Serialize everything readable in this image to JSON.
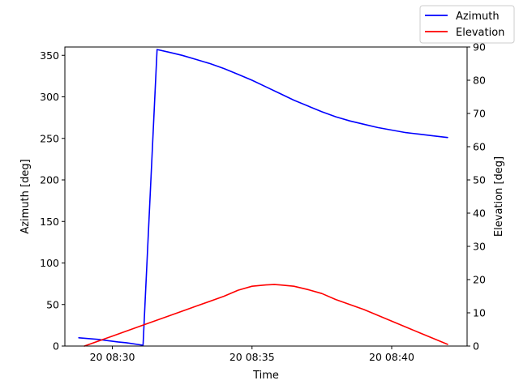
{
  "chart_data": {
    "type": "line",
    "xlabel": "Time",
    "ylabel_left": "Azimuth [deg]",
    "ylabel_right": "Elevation [deg]",
    "x_ticks": [
      "20 08:30",
      "20 08:35",
      "20 08:40"
    ],
    "x_tick_minutes": [
      30,
      35,
      40
    ],
    "xlim_minutes": [
      28.3,
      42.7
    ],
    "ylim_left": [
      0,
      360
    ],
    "ylim_right": [
      0,
      90
    ],
    "yticks_left": [
      "0",
      "50",
      "100",
      "150",
      "200",
      "250",
      "300",
      "350"
    ],
    "yticks_right": [
      "0",
      "10",
      "20",
      "30",
      "40",
      "50",
      "60",
      "70",
      "80",
      "90"
    ],
    "legend_position": "top-right (outside axes)",
    "grid": false,
    "series": [
      {
        "name": "Azimuth",
        "axis": "left",
        "color": "#0000ff",
        "x_minutes": [
          28.8,
          29.5,
          30.2,
          30.5,
          31.1,
          31.6,
          32.0,
          32.5,
          33.0,
          33.5,
          34.0,
          34.5,
          35.0,
          35.5,
          36.0,
          36.5,
          37.0,
          37.5,
          38.0,
          38.5,
          39.0,
          39.5,
          40.0,
          40.5,
          41.0,
          41.5,
          42.0
        ],
        "values": [
          10,
          8,
          5,
          4,
          1,
          357,
          354,
          350,
          345,
          340,
          334,
          327,
          320,
          312,
          304,
          296,
          289,
          282,
          276,
          271,
          267,
          263,
          260,
          257,
          255,
          253,
          251
        ]
      },
      {
        "name": "Elevation",
        "axis": "right",
        "color": "#ff0000",
        "x_minutes": [
          29.0,
          30.0,
          31.0,
          32.0,
          33.0,
          34.0,
          34.5,
          35.0,
          35.5,
          35.8,
          36.0,
          36.5,
          37.0,
          37.5,
          38.0,
          39.0,
          40.0,
          41.0,
          42.0
        ],
        "values": [
          0,
          3,
          6,
          9,
          12,
          15,
          16.8,
          18,
          18.4,
          18.5,
          18.4,
          18,
          17,
          15.8,
          14,
          11,
          7.5,
          4,
          0.5
        ]
      }
    ]
  }
}
